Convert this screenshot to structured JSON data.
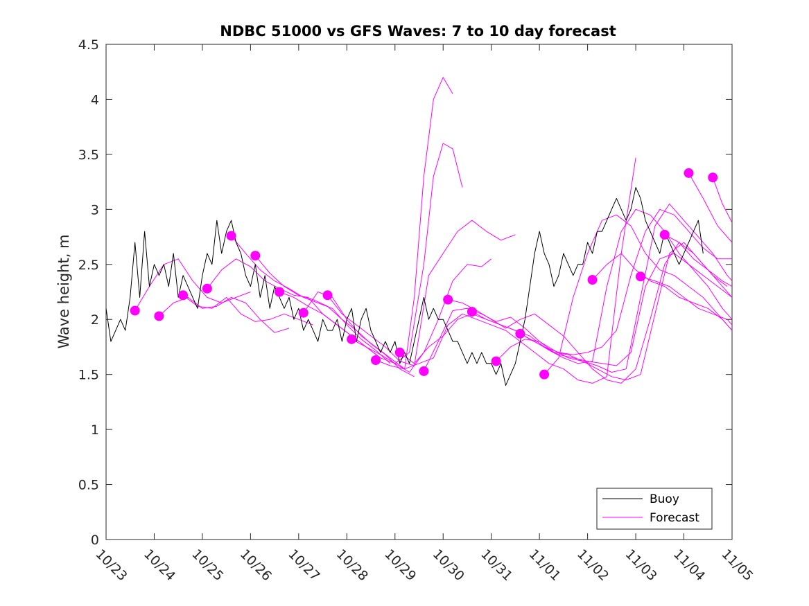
{
  "chart_data": {
    "type": "line",
    "title": "NDBC 51000 vs GFS Waves: 7 to 10 day forecast",
    "xlabel": "",
    "ylabel": "Wave height, m",
    "xlim": [
      0,
      13
    ],
    "ylim": [
      0,
      4.5
    ],
    "x_tick_labels": [
      "10/23",
      "10/24",
      "10/25",
      "10/26",
      "10/27",
      "10/28",
      "10/29",
      "10/30",
      "10/31",
      "11/01",
      "11/02",
      "11/03",
      "11/04",
      "11/05"
    ],
    "y_ticks": [
      0,
      0.5,
      1,
      1.5,
      2,
      2.5,
      3,
      3.5,
      4,
      4.5
    ],
    "y_tick_labels": [
      "0",
      "0.5",
      "1",
      "1.5",
      "2",
      "2.5",
      "3",
      "3.5",
      "4",
      "4.5"
    ],
    "legend": {
      "position": "bottom-right",
      "entries": [
        {
          "label": "Buoy",
          "color": "#000000"
        },
        {
          "label": "Forecast",
          "color": "#ff00ff"
        }
      ]
    },
    "series": [
      {
        "name": "Buoy",
        "color": "#000000",
        "x": [
          0,
          0.1,
          0.2,
          0.3,
          0.4,
          0.5,
          0.6,
          0.7,
          0.8,
          0.9,
          1.0,
          1.1,
          1.2,
          1.3,
          1.4,
          1.5,
          1.6,
          1.7,
          1.8,
          1.9,
          2.0,
          2.1,
          2.2,
          2.3,
          2.4,
          2.5,
          2.6,
          2.7,
          2.8,
          2.9,
          3.0,
          3.1,
          3.2,
          3.3,
          3.4,
          3.5,
          3.6,
          3.7,
          3.8,
          3.9,
          4.0,
          4.1,
          4.2,
          4.3,
          4.4,
          4.5,
          4.6,
          4.7,
          4.8,
          4.9,
          5.0,
          5.1,
          5.2,
          5.3,
          5.4,
          5.5,
          5.6,
          5.7,
          5.8,
          5.9,
          6.0,
          6.1,
          6.2,
          6.3,
          6.4,
          6.5,
          6.6,
          6.7,
          6.8,
          6.9,
          7.0,
          7.1,
          7.2,
          7.3,
          7.4,
          7.5,
          7.6,
          7.7,
          7.8,
          7.9,
          8.0,
          8.1,
          8.2,
          8.3,
          8.4,
          8.5,
          8.6,
          8.7,
          8.8,
          8.9,
          9.0,
          9.1,
          9.2,
          9.3,
          9.4,
          9.5,
          9.6,
          9.7,
          9.8,
          9.9,
          10.0,
          10.1,
          10.2,
          10.3,
          10.4,
          10.5,
          10.6,
          10.7,
          10.8,
          10.9,
          11.0,
          11.1,
          11.2,
          11.3,
          11.4,
          11.5,
          11.6,
          11.7,
          11.8,
          11.9,
          12.0,
          12.1,
          12.2,
          12.3,
          12.4
        ],
        "values": [
          2.1,
          1.8,
          1.9,
          2.0,
          1.9,
          2.2,
          2.7,
          2.2,
          2.8,
          2.3,
          2.5,
          2.4,
          2.5,
          2.3,
          2.6,
          2.2,
          2.4,
          2.3,
          2.2,
          2.1,
          2.4,
          2.6,
          2.5,
          2.9,
          2.6,
          2.8,
          2.9,
          2.7,
          2.6,
          2.4,
          2.3,
          2.5,
          2.2,
          2.4,
          2.1,
          2.3,
          2.2,
          2.1,
          2.2,
          2.0,
          2.1,
          1.9,
          2.0,
          1.9,
          1.8,
          2.0,
          1.9,
          1.9,
          2.0,
          1.8,
          2.0,
          2.1,
          1.8,
          2.0,
          2.1,
          1.9,
          1.8,
          1.7,
          1.8,
          1.7,
          1.8,
          1.6,
          1.7,
          1.6,
          1.8,
          2.0,
          2.2,
          2.0,
          2.1,
          2.0,
          2.0,
          1.9,
          1.8,
          1.8,
          1.7,
          1.6,
          1.7,
          1.6,
          1.7,
          1.6,
          1.6,
          1.5,
          1.6,
          1.4,
          1.5,
          1.6,
          1.8,
          2.0,
          2.3,
          2.6,
          2.8,
          2.6,
          2.5,
          2.3,
          2.4,
          2.6,
          2.5,
          2.4,
          2.5,
          2.5,
          2.7,
          2.6,
          2.8,
          2.8,
          2.9,
          3.0,
          3.1,
          3.0,
          2.9,
          3.0,
          3.2,
          3.1,
          2.9,
          2.8,
          2.7,
          2.6,
          2.8,
          2.7,
          2.6,
          2.5,
          2.6,
          2.7,
          2.8,
          2.9,
          2.6
        ]
      },
      {
        "name": "Forecast run 1",
        "color": "#ff00ff",
        "x": [
          0.6,
          0.9,
          1.2,
          1.5,
          1.8,
          2.1,
          2.4,
          2.7,
          3.0
        ],
        "values": [
          2.08,
          2.3,
          2.5,
          2.55,
          2.35,
          2.2,
          2.15,
          2.2,
          2.25
        ]
      },
      {
        "name": "Forecast run 2",
        "color": "#ff00ff",
        "x": [
          1.1,
          1.4,
          1.7,
          2.0,
          2.3,
          2.6,
          2.9,
          3.2,
          3.5,
          3.8
        ],
        "values": [
          2.03,
          2.15,
          2.2,
          2.1,
          2.12,
          2.2,
          2.15,
          2.0,
          1.88,
          1.92
        ]
      },
      {
        "name": "Forecast run 3",
        "color": "#ff00ff",
        "x": [
          1.6,
          1.9,
          2.2,
          2.5,
          2.8,
          3.1,
          3.4,
          3.7,
          4.0,
          4.3
        ],
        "values": [
          2.22,
          2.12,
          2.1,
          2.2,
          2.05,
          1.98,
          2.0,
          2.05,
          2.0,
          1.95
        ]
      },
      {
        "name": "Forecast run 4",
        "color": "#ff00ff",
        "x": [
          2.1,
          2.4,
          2.7,
          3.0,
          3.3,
          3.6,
          3.9,
          4.2,
          4.5,
          4.8,
          5.1,
          5.4,
          5.7
        ],
        "values": [
          2.28,
          2.45,
          2.55,
          2.48,
          2.35,
          2.28,
          2.22,
          2.2,
          2.05,
          1.95,
          1.85,
          1.75,
          1.65
        ]
      },
      {
        "name": "Forecast run 5",
        "color": "#ff00ff",
        "x": [
          2.6,
          2.9,
          3.2,
          3.5,
          3.8,
          4.1,
          4.4,
          4.7,
          5.0,
          5.3,
          5.6,
          5.9
        ],
        "values": [
          2.76,
          2.6,
          2.45,
          2.35,
          2.28,
          2.2,
          2.15,
          2.1,
          1.95,
          1.82,
          1.72,
          1.6
        ]
      },
      {
        "name": "Forecast run 6",
        "color": "#ff00ff",
        "x": [
          3.1,
          3.4,
          3.7,
          4.0,
          4.3,
          4.6,
          4.9,
          5.2,
          5.5,
          5.8,
          6.1,
          6.4
        ],
        "values": [
          2.58,
          2.42,
          2.3,
          2.22,
          2.18,
          2.12,
          2.0,
          1.9,
          1.78,
          1.68,
          1.55,
          1.48
        ]
      },
      {
        "name": "Forecast run 7",
        "color": "#ff00ff",
        "x": [
          3.6,
          3.9,
          4.2,
          4.5,
          4.8,
          5.1,
          5.4,
          5.7,
          6.0,
          6.3,
          6.6,
          6.8,
          7.0,
          7.2,
          7.4
        ],
        "values": [
          2.25,
          2.2,
          2.12,
          2.05,
          1.95,
          1.85,
          1.75,
          1.65,
          1.6,
          1.7,
          2.5,
          3.3,
          3.6,
          3.55,
          3.2
        ]
      },
      {
        "name": "Forecast run 8",
        "color": "#ff00ff",
        "x": [
          4.1,
          4.4,
          4.7,
          5.0,
          5.3,
          5.6,
          5.9,
          6.2,
          6.4,
          6.6,
          6.8,
          7.0,
          7.2
        ],
        "values": [
          2.06,
          2.25,
          2.2,
          2.0,
          1.85,
          1.75,
          1.65,
          1.55,
          2.2,
          3.3,
          4.0,
          4.2,
          4.05
        ]
      },
      {
        "name": "Forecast run 9",
        "color": "#ff00ff",
        "x": [
          4.6,
          4.9,
          5.2,
          5.5,
          5.8,
          6.1,
          6.4,
          6.7,
          7.0,
          7.3,
          7.6,
          7.9,
          8.2,
          8.5
        ],
        "values": [
          2.22,
          2.05,
          1.95,
          1.85,
          1.75,
          1.62,
          1.58,
          2.4,
          2.6,
          2.8,
          2.9,
          2.8,
          2.72,
          2.77
        ]
      },
      {
        "name": "Forecast run 10",
        "color": "#ff00ff",
        "x": [
          5.1,
          5.4,
          5.7,
          6.0,
          6.3,
          6.6,
          6.9,
          7.2,
          7.5,
          7.8,
          8.0
        ],
        "values": [
          1.82,
          1.75,
          1.68,
          1.6,
          1.52,
          1.7,
          2.0,
          2.35,
          2.5,
          2.48,
          2.55
        ]
      },
      {
        "name": "Forecast run 11",
        "color": "#ff00ff",
        "x": [
          5.6,
          5.9,
          6.2,
          6.5,
          6.8,
          7.1,
          7.4,
          7.7,
          8.0,
          8.3,
          8.6,
          8.9,
          9.2,
          9.5,
          9.8,
          10.1,
          10.4,
          10.7,
          11.0
        ],
        "values": [
          1.63,
          1.58,
          1.55,
          1.6,
          1.65,
          1.95,
          2.05,
          2.0,
          1.95,
          1.9,
          1.8,
          1.7,
          1.6,
          1.55,
          1.45,
          1.42,
          1.48,
          2.6,
          3.47
        ]
      },
      {
        "name": "Forecast run 12",
        "color": "#ff00ff",
        "x": [
          6.1,
          6.4,
          6.7,
          7.0,
          7.3,
          7.6,
          7.9,
          8.2,
          8.5,
          8.8,
          9.1,
          9.4,
          9.7,
          10.0,
          10.3,
          10.6,
          10.9,
          11.2,
          11.5,
          11.8,
          12.1,
          12.4,
          12.7,
          13.0
        ],
        "values": [
          1.7,
          1.6,
          1.75,
          1.85,
          2.0,
          2.05,
          2.0,
          1.95,
          1.9,
          1.85,
          1.75,
          1.7,
          1.68,
          1.7,
          1.75,
          1.9,
          2.4,
          2.8,
          3.0,
          2.95,
          2.8,
          2.65,
          2.55,
          2.55
        ]
      },
      {
        "name": "Forecast run 13",
        "color": "#ff00ff",
        "x": [
          6.6,
          6.9,
          7.2,
          7.5,
          7.8,
          8.1,
          8.4,
          8.7,
          9.0,
          9.3,
          9.6,
          9.9,
          10.2,
          10.5,
          10.8,
          11.1,
          11.4,
          11.7,
          12.0,
          12.3,
          12.6,
          12.9
        ],
        "values": [
          1.53,
          1.8,
          2.08,
          2.1,
          2.05,
          1.98,
          2.02,
          1.92,
          1.8,
          1.7,
          1.68,
          1.62,
          1.55,
          1.48,
          1.45,
          1.5,
          2.05,
          2.6,
          2.7,
          2.55,
          2.4,
          2.3
        ]
      },
      {
        "name": "Forecast run 14",
        "color": "#ff00ff",
        "x": [
          7.1,
          7.4,
          7.7,
          8.0,
          8.3,
          8.6,
          8.9,
          9.2,
          9.5,
          9.8,
          10.1,
          10.4,
          10.7,
          11.0,
          11.3,
          11.6,
          11.9,
          12.2,
          12.5,
          12.8,
          13.0
        ],
        "values": [
          2.18,
          2.15,
          2.08,
          2.0,
          1.92,
          2.0,
          2.05,
          1.95,
          1.85,
          1.7,
          1.55,
          1.45,
          1.42,
          1.55,
          2.0,
          2.5,
          2.7,
          2.6,
          2.45,
          2.3,
          2.2
        ]
      },
      {
        "name": "Forecast run 15",
        "color": "#ff00ff",
        "x": [
          7.6,
          7.9,
          8.2,
          8.5,
          8.8,
          9.1,
          9.4,
          9.7,
          10.0,
          10.3,
          10.6,
          10.9,
          11.2,
          11.5,
          11.8,
          12.1,
          12.4,
          12.7,
          13.0
        ],
        "values": [
          2.07,
          2.0,
          1.95,
          1.9,
          1.82,
          1.75,
          1.68,
          1.65,
          1.62,
          1.6,
          1.58,
          1.7,
          2.3,
          2.55,
          2.6,
          2.5,
          2.4,
          2.3,
          2.2
        ]
      },
      {
        "name": "Forecast run 16",
        "color": "#ff00ff",
        "x": [
          8.1,
          8.4,
          8.7,
          9.0,
          9.3,
          9.6,
          9.9,
          10.2,
          10.5,
          10.8,
          11.1,
          11.4,
          11.7,
          12.0,
          12.3,
          12.6,
          12.9,
          13.0
        ],
        "values": [
          1.62,
          1.75,
          1.82,
          1.8,
          1.72,
          1.65,
          1.62,
          1.58,
          1.52,
          1.55,
          2.2,
          2.85,
          3.05,
          2.9,
          2.75,
          2.6,
          2.4,
          2.35
        ]
      },
      {
        "name": "Forecast run 17",
        "color": "#ff00ff",
        "x": [
          8.6,
          8.9,
          9.2,
          9.5,
          9.8,
          10.1,
          10.4,
          10.7,
          11.0,
          11.3,
          11.6,
          11.9,
          12.2,
          12.5,
          12.8,
          13.0
        ],
        "values": [
          1.87,
          1.8,
          1.72,
          1.65,
          1.6,
          1.62,
          2.3,
          2.8,
          3.0,
          2.95,
          2.8,
          2.6,
          2.45,
          2.3,
          2.1,
          2.0
        ]
      },
      {
        "name": "Forecast run 18",
        "color": "#ff00ff",
        "x": [
          9.1,
          9.4,
          9.7,
          10.0,
          10.3,
          10.6,
          10.9,
          11.2,
          11.5,
          11.8,
          12.1,
          12.4,
          12.7,
          13.0
        ],
        "values": [
          1.5,
          1.65,
          2.2,
          2.6,
          2.9,
          2.95,
          2.85,
          2.6,
          2.45,
          2.4,
          2.3,
          2.2,
          2.05,
          1.9
        ]
      },
      {
        "name": "Forecast run 19",
        "color": "#ff00ff",
        "x": [
          10.1,
          10.4,
          10.7,
          11.0,
          11.3,
          11.6,
          11.9,
          12.2,
          12.5,
          12.8,
          13.0
        ],
        "values": [
          2.36,
          2.5,
          2.6,
          2.45,
          2.35,
          2.3,
          2.2,
          2.15,
          2.1,
          2.0,
          1.9
        ]
      },
      {
        "name": "Forecast run 20",
        "color": "#ff00ff",
        "x": [
          11.1,
          11.4,
          11.7,
          12.0,
          12.3,
          12.6,
          12.9,
          13.0
        ],
        "values": [
          2.39,
          2.35,
          2.3,
          2.2,
          2.1,
          2.05,
          2.0,
          1.95
        ]
      },
      {
        "name": "Forecast run 21",
        "color": "#ff00ff",
        "x": [
          11.6,
          11.9,
          12.2,
          12.5,
          12.8,
          13.0
        ],
        "values": [
          2.77,
          2.7,
          2.55,
          2.45,
          2.35,
          2.3
        ]
      },
      {
        "name": "Forecast run 22",
        "color": "#ff00ff",
        "x": [
          12.1,
          12.4,
          12.7,
          13.0
        ],
        "values": [
          3.33,
          3.1,
          2.85,
          2.7
        ]
      },
      {
        "name": "Forecast run 23",
        "color": "#ff00ff",
        "x": [
          12.6,
          12.8,
          13.0
        ],
        "values": [
          3.29,
          3.05,
          2.88
        ]
      }
    ],
    "markers": {
      "name": "Forecast start points",
      "color": "#ff00ff",
      "x": [
        0.6,
        1.1,
        1.6,
        2.1,
        2.6,
        3.1,
        3.6,
        4.1,
        4.6,
        5.1,
        5.6,
        6.1,
        6.6,
        7.1,
        7.6,
        8.1,
        8.6,
        9.1,
        10.1,
        11.1,
        11.6,
        12.1,
        12.6
      ],
      "values": [
        2.08,
        2.03,
        2.22,
        2.28,
        2.76,
        2.58,
        2.25,
        2.06,
        2.22,
        1.82,
        1.63,
        1.7,
        1.53,
        2.18,
        2.07,
        1.62,
        1.87,
        1.5,
        2.36,
        2.39,
        2.77,
        3.33,
        3.29
      ]
    }
  }
}
